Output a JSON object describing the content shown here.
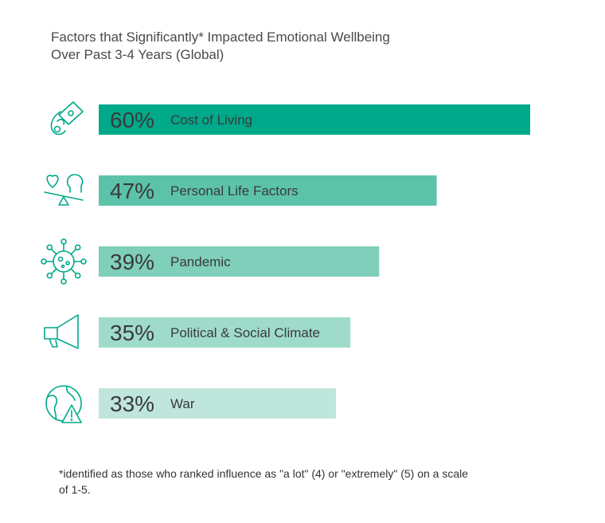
{
  "title_line1": "Factors that Significantly* Impacted Emotional Wellbeing",
  "title_line2": "Over Past 3-4 Years (Global)",
  "footnote": "*identified as those who ranked influence as \"a lot\" (4) or \"extremely\" (5) on a scale of 1-5.",
  "chart_data": {
    "type": "bar",
    "orientation": "horizontal",
    "categories": [
      "Cost of Living",
      "Personal Life Factors",
      "Pandemic",
      "Political & Social Climate",
      "War"
    ],
    "values": [
      60,
      47,
      39,
      35,
      33
    ],
    "value_labels": [
      "60%",
      "47%",
      "39%",
      "35%",
      "33%"
    ],
    "icons": [
      "money-in-hand-icon",
      "heart-head-balance-icon",
      "virus-icon",
      "megaphone-icon",
      "globe-warning-icon"
    ],
    "bar_colors": [
      "#00a98a",
      "#5cc3a9",
      "#7fcfba",
      "#9fdbcb",
      "#bfe6dc"
    ],
    "icon_color": "#00a98a",
    "xlim": [
      0,
      60
    ]
  }
}
